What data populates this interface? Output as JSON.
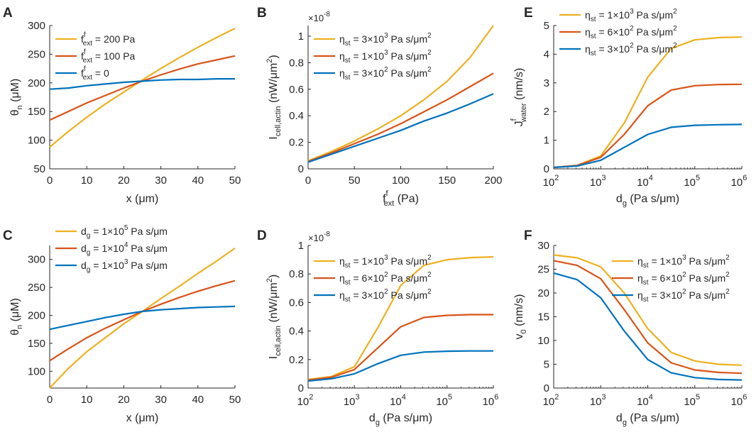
{
  "colors": {
    "yellow": "#EDB120",
    "orange": "#D95319",
    "blue": "#0072BD",
    "axis": "#262626"
  },
  "chart_data": [
    {
      "panel": "A",
      "type": "line",
      "xlabel": "x (μm)",
      "ylabel": "θ",
      "ylabel_sub": "n",
      "ylabel_unit": "(μM)",
      "xlim": [
        0,
        50
      ],
      "ylim": [
        50,
        300
      ],
      "xticks": [
        "0",
        "10",
        "20",
        "30",
        "40",
        "50"
      ],
      "yticks": [
        "50",
        "100",
        "150",
        "200",
        "250",
        "300"
      ],
      "legend_position": "top-left",
      "series": [
        {
          "name": "f",
          "sup": "f",
          "sub": "ext",
          "rest": " = 200 Pa",
          "color": "yellow",
          "x": [
            0,
            5,
            10,
            15,
            20,
            25,
            30,
            35,
            40,
            45,
            50
          ],
          "y": [
            88,
            115,
            140,
            163,
            184,
            205,
            225,
            244,
            262,
            279,
            295
          ]
        },
        {
          "name": "f",
          "sup": "f",
          "sub": "ext",
          "rest": " = 100 Pa",
          "color": "orange",
          "x": [
            0,
            5,
            10,
            15,
            20,
            25,
            30,
            35,
            40,
            45,
            50
          ],
          "y": [
            135,
            150,
            165,
            178,
            191,
            203,
            214,
            224,
            233,
            240,
            247
          ]
        },
        {
          "name": "f",
          "sup": "f",
          "sub": "ext",
          "rest": " = 0",
          "color": "blue",
          "x": [
            0,
            5,
            10,
            15,
            20,
            25,
            30,
            35,
            40,
            45,
            50
          ],
          "y": [
            189,
            191,
            195,
            198,
            201,
            203,
            205,
            206,
            206,
            207,
            207
          ]
        }
      ]
    },
    {
      "panel": "B",
      "type": "line",
      "xlabel": "f",
      "xlabel_sup": "f",
      "xlabel_sub": "ext",
      "xlabel_rest": " (Pa)",
      "ylabel": "I",
      "ylabel_sub": "cell,actin",
      "ylabel_unit": "(nW/μm",
      "ylabel_sup2": "2",
      "ylabel_close": ")",
      "multiplier": "×10",
      "multiplier_exp": "-8",
      "xlim": [
        0,
        200
      ],
      "ylim": [
        0,
        1.08
      ],
      "xticks": [
        "0",
        "50",
        "100",
        "150",
        "200"
      ],
      "yticks": [
        "0",
        "0.2",
        "0.4",
        "0.6",
        "0.8",
        "1"
      ],
      "legend_position": "top-left",
      "series": [
        {
          "name": "η",
          "sub": "st",
          "rest": " = 3×10",
          "exp": "3",
          "unit": " Pa s/μm",
          "unit_exp": "2",
          "color": "yellow",
          "x": [
            0,
            25,
            50,
            75,
            100,
            125,
            150,
            175,
            200
          ],
          "y": [
            0.06,
            0.13,
            0.21,
            0.3,
            0.4,
            0.52,
            0.66,
            0.84,
            1.08
          ]
        },
        {
          "name": "η",
          "sub": "st",
          "rest": " = 1×10",
          "exp": "3",
          "unit": " Pa s/μm",
          "unit_exp": "2",
          "color": "orange",
          "x": [
            0,
            25,
            50,
            75,
            100,
            125,
            150,
            175,
            200
          ],
          "y": [
            0.055,
            0.12,
            0.19,
            0.26,
            0.34,
            0.43,
            0.52,
            0.62,
            0.72
          ]
        },
        {
          "name": "η",
          "sub": "st",
          "rest": " = 3×10",
          "exp": "2",
          "unit": " Pa s/μm",
          "unit_exp": "2",
          "color": "blue",
          "x": [
            0,
            25,
            50,
            75,
            100,
            125,
            150,
            175,
            200
          ],
          "y": [
            0.05,
            0.11,
            0.17,
            0.23,
            0.29,
            0.36,
            0.42,
            0.49,
            0.565
          ]
        }
      ]
    },
    {
      "panel": "E",
      "type": "line",
      "xscale": "log",
      "xlabel": "d",
      "xlabel_sub": "g",
      "xlabel_rest": " (Pa s/μm)",
      "ylabel": "J",
      "ylabel_sup": "f",
      "ylabel_sub": "water",
      "ylabel_unit": "(nm/s)",
      "xlim": [
        100,
        1000000
      ],
      "ylim": [
        0,
        5
      ],
      "xticks": [
        2,
        3,
        4,
        5,
        6
      ],
      "yticks": [
        "0",
        "1",
        "2",
        "3",
        "4",
        "5"
      ],
      "legend_position": "top-left",
      "series": [
        {
          "name": "η",
          "sub": "st",
          "rest": " = 1×10",
          "exp": "3",
          "unit": " Pa s/μm",
          "unit_exp": "2",
          "color": "yellow",
          "x": [
            100,
            316,
            1000,
            3162,
            10000,
            31623,
            100000,
            316228,
            1000000
          ],
          "y": [
            0.05,
            0.12,
            0.45,
            1.6,
            3.2,
            4.2,
            4.5,
            4.58,
            4.6
          ]
        },
        {
          "name": "η",
          "sub": "st",
          "rest": " = 6×10",
          "exp": "2",
          "unit": " Pa s/μm",
          "unit_exp": "2",
          "color": "orange",
          "x": [
            100,
            316,
            1000,
            3162,
            10000,
            31623,
            100000,
            316228,
            1000000
          ],
          "y": [
            0.05,
            0.12,
            0.4,
            1.2,
            2.2,
            2.75,
            2.9,
            2.94,
            2.95
          ]
        },
        {
          "name": "η",
          "sub": "st",
          "rest": " = 3×10",
          "exp": "2",
          "unit": " Pa s/μm",
          "unit_exp": "2",
          "color": "blue",
          "x": [
            100,
            316,
            1000,
            3162,
            10000,
            31623,
            100000,
            316228,
            1000000
          ],
          "y": [
            0.05,
            0.1,
            0.3,
            0.75,
            1.2,
            1.45,
            1.52,
            1.54,
            1.55
          ]
        }
      ]
    },
    {
      "panel": "C",
      "type": "line",
      "xlabel": "x (μm)",
      "ylabel": "θ",
      "ylabel_sub": "n",
      "ylabel_unit": "(μM)",
      "xlim": [
        0,
        50
      ],
      "ylim": [
        70,
        325
      ],
      "xticks": [
        "0",
        "10",
        "20",
        "30",
        "40",
        "50"
      ],
      "yticks": [
        "100",
        "150",
        "200",
        "250",
        "300"
      ],
      "legend_position": "top-left",
      "series": [
        {
          "name": "d",
          "sub": "g",
          "rest": " = 1×10",
          "exp": "5",
          "unit": " Pa s/μm",
          "color": "yellow",
          "x": [
            0,
            5,
            10,
            15,
            20,
            25,
            30,
            35,
            40,
            45,
            50
          ],
          "y": [
            70,
            105,
            135,
            160,
            185,
            207,
            230,
            252,
            275,
            297,
            320
          ]
        },
        {
          "name": "d",
          "sub": "g",
          "rest": " = 1×10",
          "exp": "4",
          "unit": " Pa s/μm",
          "color": "orange",
          "x": [
            0,
            5,
            10,
            15,
            20,
            25,
            30,
            35,
            40,
            45,
            50
          ],
          "y": [
            119,
            140,
            160,
            177,
            192,
            207,
            220,
            232,
            243,
            253,
            262
          ]
        },
        {
          "name": "d",
          "sub": "g",
          "rest": " = 1×10",
          "exp": "3",
          "unit": " Pa s/μm",
          "color": "blue",
          "x": [
            0,
            5,
            10,
            15,
            20,
            25,
            30,
            35,
            40,
            45,
            50
          ],
          "y": [
            175,
            182,
            189,
            196,
            202,
            207,
            210,
            212,
            214,
            215,
            216
          ]
        }
      ]
    },
    {
      "panel": "D",
      "type": "line",
      "xscale": "log",
      "xlabel": "d",
      "xlabel_sub": "g",
      "xlabel_rest": " (Pa s/μm)",
      "ylabel": "I",
      "ylabel_sub": "cell,actin",
      "ylabel_unit": "(nW/μm",
      "ylabel_sup2": "2",
      "ylabel_close": ")",
      "multiplier": "×10",
      "multiplier_exp": "-8",
      "xlim": [
        100,
        1000000
      ],
      "ylim": [
        0,
        1
      ],
      "xticks": [
        2,
        3,
        4,
        5,
        6
      ],
      "yticks": [
        "0",
        "0.2",
        "0.4",
        "0.6",
        "0.8",
        "1"
      ],
      "legend_position": "top-left",
      "series": [
        {
          "name": "η",
          "sub": "st",
          "rest": " = 1×10",
          "exp": "3",
          "unit": " Pa s/μm",
          "unit_exp": "2",
          "color": "yellow",
          "x": [
            100,
            316,
            1000,
            3162,
            10000,
            31623,
            100000,
            316228,
            1000000
          ],
          "y": [
            0.06,
            0.08,
            0.15,
            0.42,
            0.72,
            0.86,
            0.9,
            0.915,
            0.92
          ]
        },
        {
          "name": "η",
          "sub": "st",
          "rest": " = 6×10",
          "exp": "2",
          "unit": " Pa s/μm",
          "unit_exp": "2",
          "color": "orange",
          "x": [
            100,
            316,
            1000,
            3162,
            10000,
            31623,
            100000,
            316228,
            1000000
          ],
          "y": [
            0.055,
            0.075,
            0.13,
            0.28,
            0.43,
            0.495,
            0.51,
            0.515,
            0.515
          ]
        },
        {
          "name": "η",
          "sub": "st",
          "rest": " = 3×10",
          "exp": "2",
          "unit": " Pa s/μm",
          "unit_exp": "2",
          "color": "blue",
          "x": [
            100,
            316,
            1000,
            3162,
            10000,
            31623,
            100000,
            316228,
            1000000
          ],
          "y": [
            0.05,
            0.065,
            0.1,
            0.17,
            0.23,
            0.252,
            0.258,
            0.26,
            0.26
          ]
        }
      ]
    },
    {
      "panel": "F",
      "type": "line",
      "xscale": "log",
      "xlabel": "d",
      "xlabel_sub": "g",
      "xlabel_rest": " (Pa s/μm)",
      "ylabel": "v",
      "ylabel_sub": "0",
      "ylabel_unit": "(nm/s)",
      "xlim": [
        100,
        1000000
      ],
      "ylim": [
        0,
        30
      ],
      "xticks": [
        2,
        3,
        4,
        5,
        6
      ],
      "yticks": [
        "0",
        "5",
        "10",
        "15",
        "20",
        "25",
        "30"
      ],
      "legend_position": "top-right",
      "series": [
        {
          "name": "η",
          "sub": "st",
          "rest": " = 1×10",
          "exp": "3",
          "unit": " Pa s/μm",
          "unit_exp": "2",
          "color": "yellow",
          "x": [
            100,
            316,
            1000,
            3162,
            10000,
            31623,
            100000,
            316228,
            1000000
          ],
          "y": [
            28,
            27.4,
            25.5,
            20,
            12.5,
            7.5,
            5.7,
            5.0,
            4.8
          ]
        },
        {
          "name": "η",
          "sub": "st",
          "rest": " = 6×10",
          "exp": "2",
          "unit": " Pa s/μm",
          "unit_exp": "2",
          "color": "orange",
          "x": [
            100,
            316,
            1000,
            3162,
            10000,
            31623,
            100000,
            316228,
            1000000
          ],
          "y": [
            26.8,
            25.8,
            23,
            16.5,
            9.5,
            5.3,
            3.8,
            3.3,
            3.1
          ]
        },
        {
          "name": "η",
          "sub": "st",
          "rest": " = 3×10",
          "exp": "2",
          "unit": " Pa s/μm",
          "unit_exp": "2",
          "color": "blue",
          "x": [
            100,
            316,
            1000,
            3162,
            10000,
            31623,
            100000,
            316228,
            1000000
          ],
          "y": [
            24.2,
            22.8,
            19,
            12,
            6,
            3.2,
            2.2,
            1.8,
            1.7
          ]
        }
      ]
    }
  ]
}
